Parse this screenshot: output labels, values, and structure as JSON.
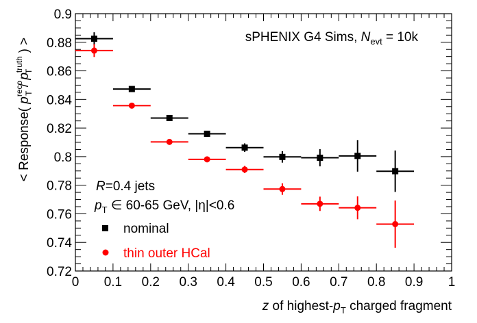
{
  "chart_data": {
    "type": "scatter",
    "title": "sPHENIX G4 Sims, N_evt = 10k",
    "header": {
      "prefix": "sPHENIX G4 Sims, ",
      "n": "N",
      "n_sub": "evt",
      "suffix": " = 10k"
    },
    "xlabel": {
      "z": "z",
      "mid": " of highest-",
      "p": "p",
      "sub": "T",
      "tail": " charged fragment"
    },
    "ylabel": {
      "open": "< Response( ",
      "p1": "p",
      "sup1": "reco",
      "sub1": "T",
      "slash": " / ",
      "p2": "p",
      "sup2": "truth",
      "sub2": "T",
      "close": " ) >"
    },
    "xlim": [
      0,
      1
    ],
    "ylim": [
      0.72,
      0.9
    ],
    "xticks": [
      "0",
      "0.1",
      "0.2",
      "0.3",
      "0.4",
      "0.5",
      "0.6",
      "0.7",
      "0.8",
      "0.9",
      "1"
    ],
    "yticks": [
      "0.72",
      "0.74",
      "0.76",
      "0.78",
      "0.8",
      "0.82",
      "0.84",
      "0.86",
      "0.88",
      "0.9"
    ],
    "annotations": {
      "jets_r": "R",
      "jets_rest": "=0.4 jets",
      "pt_p": "p",
      "pt_sub": "T",
      "pt_rest": " ∈ 60-65 GeV, |η|<0.6"
    },
    "legend_placement": "bottom-left",
    "series": [
      {
        "name": "nominal",
        "color": "#000000",
        "marker": "square",
        "x": [
          0.05,
          0.15,
          0.25,
          0.35,
          0.45,
          0.55,
          0.65,
          0.75,
          0.85
        ],
        "y": [
          0.8825,
          0.8473,
          0.827,
          0.816,
          0.8063,
          0.7998,
          0.7992,
          0.8005,
          0.7898
        ],
        "yerr": [
          0.0045,
          0.001,
          0.0013,
          0.002,
          0.003,
          0.004,
          0.006,
          0.011,
          0.0145
        ],
        "xerr": 0.05
      },
      {
        "name": "thin outer HCal",
        "color": "#ff0000",
        "marker": "circle",
        "x": [
          0.05,
          0.15,
          0.25,
          0.35,
          0.45,
          0.55,
          0.65,
          0.75,
          0.85
        ],
        "y": [
          0.8742,
          0.8357,
          0.8103,
          0.7981,
          0.791,
          0.7773,
          0.767,
          0.7642,
          0.7528
        ],
        "yerr": [
          0.0045,
          0.001,
          0.0013,
          0.0018,
          0.0025,
          0.004,
          0.005,
          0.008,
          0.0165
        ],
        "xerr": 0.05
      }
    ]
  }
}
